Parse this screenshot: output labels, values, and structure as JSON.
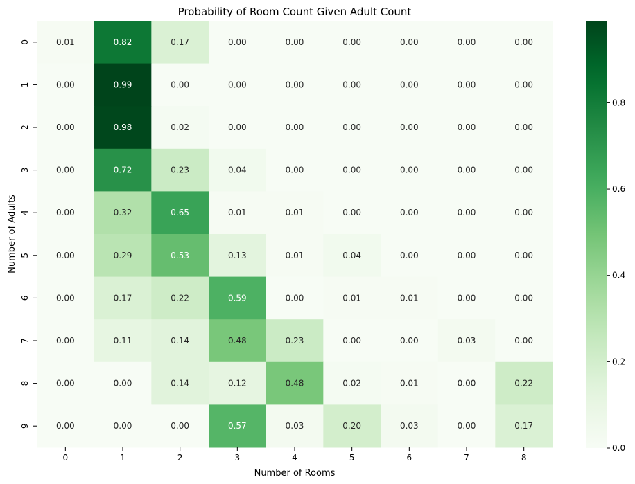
{
  "chart_data": {
    "type": "heatmap",
    "title": "Probability of Room Count Given Adult Count",
    "xlabel": "Number of Rooms",
    "ylabel": "Number of Adults",
    "x_categories": [
      "0",
      "1",
      "2",
      "3",
      "4",
      "5",
      "6",
      "7",
      "8"
    ],
    "y_categories": [
      "0",
      "1",
      "2",
      "3",
      "4",
      "5",
      "6",
      "7",
      "8",
      "9"
    ],
    "values": [
      [
        0.01,
        0.82,
        0.17,
        0.0,
        0.0,
        0.0,
        0.0,
        0.0,
        0.0
      ],
      [
        0.0,
        0.99,
        0.0,
        0.0,
        0.0,
        0.0,
        0.0,
        0.0,
        0.0
      ],
      [
        0.0,
        0.98,
        0.02,
        0.0,
        0.0,
        0.0,
        0.0,
        0.0,
        0.0
      ],
      [
        0.0,
        0.72,
        0.23,
        0.04,
        0.0,
        0.0,
        0.0,
        0.0,
        0.0
      ],
      [
        0.0,
        0.32,
        0.65,
        0.01,
        0.01,
        0.0,
        0.0,
        0.0,
        0.0
      ],
      [
        0.0,
        0.29,
        0.53,
        0.13,
        0.01,
        0.04,
        0.0,
        0.0,
        0.0
      ],
      [
        0.0,
        0.17,
        0.22,
        0.59,
        0.0,
        0.01,
        0.01,
        0.0,
        0.0
      ],
      [
        0.0,
        0.11,
        0.14,
        0.48,
        0.23,
        0.0,
        0.0,
        0.03,
        0.0
      ],
      [
        0.0,
        0.0,
        0.14,
        0.12,
        0.48,
        0.02,
        0.01,
        0.0,
        0.22
      ],
      [
        0.0,
        0.0,
        0.0,
        0.57,
        0.03,
        0.2,
        0.03,
        0.0,
        0.17
      ]
    ],
    "colorscale": "Greens",
    "color_range": [
      0,
      0.99
    ],
    "colorbar_ticks": [
      "0.0",
      "0.2",
      "0.4",
      "0.6",
      "0.8"
    ],
    "colorbar_tick_values": [
      0,
      0.2,
      0.4,
      0.6,
      0.8
    ],
    "grid": false,
    "legend": "colorbar-right"
  }
}
